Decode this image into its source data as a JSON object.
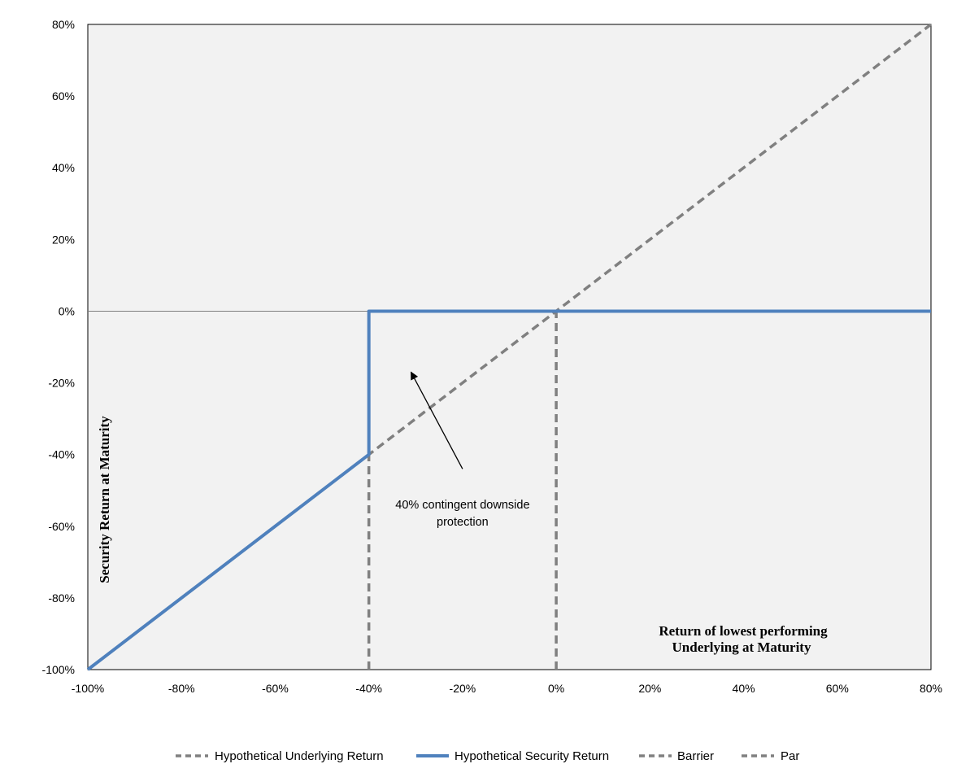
{
  "chart_data": {
    "type": "line",
    "title": "",
    "xlabel_lines": [
      "Return of lowest performing",
      "Underlying at Maturity"
    ],
    "ylabel": "Security Return at Maturity",
    "xlim": [
      -100,
      80
    ],
    "ylim": [
      -100,
      80
    ],
    "x_ticks": [
      -100,
      -80,
      -60,
      -40,
      -20,
      0,
      20,
      40,
      60,
      80
    ],
    "y_ticks": [
      -100,
      -80,
      -60,
      -40,
      -20,
      0,
      20,
      40,
      60,
      80
    ],
    "x_tick_labels": [
      "-100%",
      "-80%",
      "-60%",
      "-40%",
      "-20%",
      "0%",
      "20%",
      "40%",
      "60%",
      "80%"
    ],
    "y_tick_labels": [
      "-100%",
      "-80%",
      "-60%",
      "-40%",
      "-20%",
      "0%",
      "20%",
      "40%",
      "60%",
      "80%"
    ],
    "grid": false,
    "plot_background": "#f2f2f2",
    "series": [
      {
        "name": "Hypothetical Underlying Return",
        "style": "dashed",
        "color": "#808080",
        "x": [
          -100,
          80
        ],
        "y": [
          -100,
          80
        ]
      },
      {
        "name": "Hypothetical Security Return",
        "style": "solid",
        "color": "#4f81bd",
        "x": [
          -100,
          -40,
          -40,
          80
        ],
        "y": [
          -100,
          -40,
          0,
          0
        ]
      },
      {
        "name": "Barrier",
        "style": "dashed",
        "color": "#808080",
        "x": [
          -40,
          -40
        ],
        "y": [
          -100,
          -40
        ]
      },
      {
        "name": "Par",
        "style": "dashed",
        "color": "#808080",
        "x": [
          0,
          0
        ],
        "y": [
          -100,
          0
        ]
      }
    ],
    "annotations": [
      {
        "text_lines": [
          "40% contingent downside",
          "protection"
        ],
        "text_at": [
          -20,
          -55
        ],
        "arrow_from": [
          -20,
          -44
        ],
        "arrow_to": [
          -31,
          -17
        ]
      }
    ],
    "legend": {
      "position": "bottom",
      "items": [
        {
          "label": "Hypothetical Underlying Return",
          "style": "dashed",
          "color": "#808080"
        },
        {
          "label": "Hypothetical Security Return",
          "style": "solid",
          "color": "#4f81bd"
        },
        {
          "label": "Barrier",
          "style": "dashed",
          "color": "#808080"
        },
        {
          "label": "Par",
          "style": "dashed",
          "color": "#808080"
        }
      ]
    }
  }
}
